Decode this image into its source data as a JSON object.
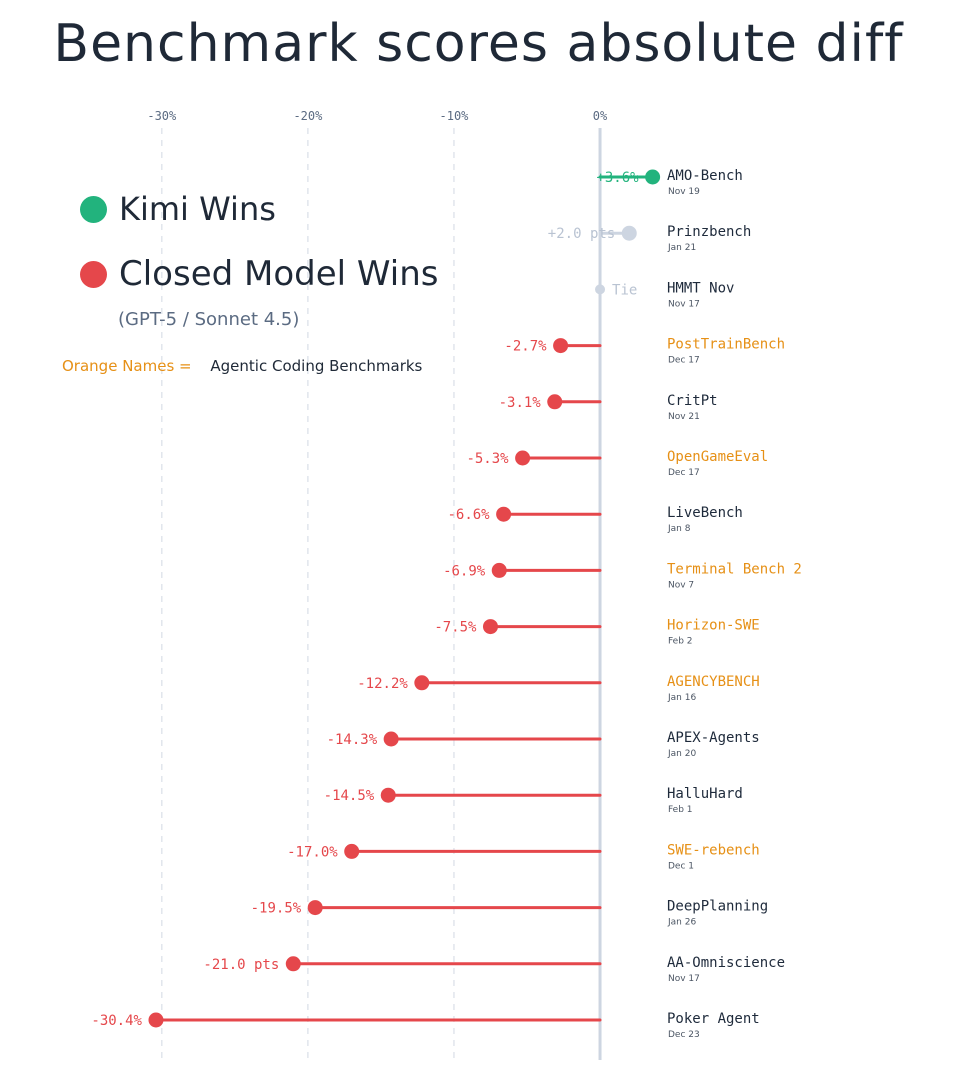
{
  "title": "Benchmark scores absolute diff",
  "colors": {
    "kimi": "#22b37d",
    "closed": "#e5474b",
    "tie": "#cdd5e1",
    "axis": "#cdd5e1",
    "agentic": "#e69016",
    "default_name": "#1e2a3b"
  },
  "legend": {
    "kimi_label": "Kimi Wins",
    "closed_label": "Closed Model Wins",
    "closed_sub": "(GPT-5 / Sonnet 4.5)",
    "note_key": "Orange Names =",
    "note_desc": "Agentic Coding Benchmarks"
  },
  "chart_data": {
    "type": "lollipop",
    "title": "Benchmark scores absolute diff",
    "xlim": [
      -33,
      3.9
    ],
    "x_ticks": [
      {
        "value": -30,
        "label": "-30%"
      },
      {
        "value": -20,
        "label": "-20%"
      },
      {
        "value": -10,
        "label": "-10%"
      },
      {
        "value": 0,
        "label": "0%"
      }
    ],
    "grid": true,
    "series": [
      {
        "name": "AMO-Bench",
        "date": "Nov 19",
        "value": 3.6,
        "label": "+3.6%",
        "winner": "kimi",
        "agentic": false
      },
      {
        "name": "Prinzbench",
        "date": "Jan 21",
        "value": 2.0,
        "label": "+2.0 pts",
        "winner": "tie",
        "agentic": false
      },
      {
        "name": "HMMT Nov",
        "date": "Nov 17",
        "value": 0,
        "label": "Tie",
        "winner": "tie",
        "agentic": false
      },
      {
        "name": "PostTrainBench",
        "date": "Dec 17",
        "value": -2.7,
        "label": "-2.7%",
        "winner": "closed",
        "agentic": true
      },
      {
        "name": "CritPt",
        "date": "Nov 21",
        "value": -3.1,
        "label": "-3.1%",
        "winner": "closed",
        "agentic": false
      },
      {
        "name": "OpenGameEval",
        "date": "Dec 17",
        "value": -5.3,
        "label": "-5.3%",
        "winner": "closed",
        "agentic": true
      },
      {
        "name": "LiveBench",
        "date": "Jan 8",
        "value": -6.6,
        "label": "-6.6%",
        "winner": "closed",
        "agentic": false
      },
      {
        "name": "Terminal Bench 2",
        "date": "Nov 7",
        "value": -6.9,
        "label": "-6.9%",
        "winner": "closed",
        "agentic": true
      },
      {
        "name": "Horizon-SWE",
        "date": "Feb 2",
        "value": -7.5,
        "label": "-7.5%",
        "winner": "closed",
        "agentic": true
      },
      {
        "name": "AGENCYBENCH",
        "date": "Jan 16",
        "value": -12.2,
        "label": "-12.2%",
        "winner": "closed",
        "agentic": true
      },
      {
        "name": "APEX-Agents",
        "date": "Jan 20",
        "value": -14.3,
        "label": "-14.3%",
        "winner": "closed",
        "agentic": false
      },
      {
        "name": "HalluHard",
        "date": "Feb 1",
        "value": -14.5,
        "label": "-14.5%",
        "winner": "closed",
        "agentic": false
      },
      {
        "name": "SWE-rebench",
        "date": "Dec 1",
        "value": -17.0,
        "label": "-17.0%",
        "winner": "closed",
        "agentic": true
      },
      {
        "name": "DeepPlanning",
        "date": "Jan 26",
        "value": -19.5,
        "label": "-19.5%",
        "winner": "closed",
        "agentic": false
      },
      {
        "name": "AA-Omniscience",
        "date": "Nov 17",
        "value": -21.0,
        "label": "-21.0 pts",
        "winner": "closed",
        "agentic": false
      },
      {
        "name": "Poker Agent",
        "date": "Dec 23",
        "value": -30.4,
        "label": "-30.4%",
        "winner": "closed",
        "agentic": false
      }
    ]
  }
}
